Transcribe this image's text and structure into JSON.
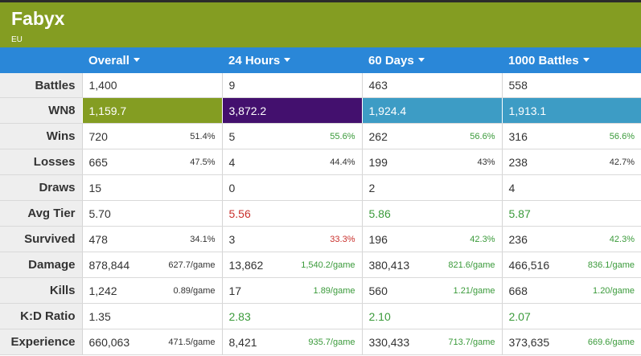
{
  "player": {
    "name": "Fabyx",
    "server": "EU"
  },
  "columns": [
    "Overall",
    "24 Hours",
    "60 Days",
    "1000 Battles"
  ],
  "colors": {
    "header_bg": "#849d22",
    "columns_bg": "#2a87d8",
    "wn8": [
      "#849d22",
      "#43106e",
      "#3d9cc5",
      "#3d9cc5"
    ],
    "good": "#3a9a3a",
    "bad": "#c9302c"
  },
  "rows": {
    "battles": {
      "label": "Battles",
      "cells": [
        {
          "v": "1,400"
        },
        {
          "v": "9"
        },
        {
          "v": "463"
        },
        {
          "v": "558"
        }
      ]
    },
    "wn8": {
      "label": "WN8",
      "cells": [
        {
          "v": "1,159.7"
        },
        {
          "v": "3,872.2"
        },
        {
          "v": "1,924.4"
        },
        {
          "v": "1,913.1"
        }
      ]
    },
    "wins": {
      "label": "Wins",
      "cells": [
        {
          "v": "720",
          "s": "51.4%"
        },
        {
          "v": "5",
          "s": "55.6%"
        },
        {
          "v": "262",
          "s": "56.6%"
        },
        {
          "v": "316",
          "s": "56.6%"
        }
      ]
    },
    "losses": {
      "label": "Losses",
      "cells": [
        {
          "v": "665",
          "s": "47.5%"
        },
        {
          "v": "4",
          "s": "44.4%"
        },
        {
          "v": "199",
          "s": "43%"
        },
        {
          "v": "238",
          "s": "42.7%"
        }
      ]
    },
    "draws": {
      "label": "Draws",
      "cells": [
        {
          "v": "15"
        },
        {
          "v": "0"
        },
        {
          "v": "2"
        },
        {
          "v": "4"
        }
      ]
    },
    "avg_tier": {
      "label": "Avg Tier",
      "cells": [
        {
          "v": "5.70"
        },
        {
          "v": "5.56"
        },
        {
          "v": "5.86"
        },
        {
          "v": "5.87"
        }
      ]
    },
    "survived": {
      "label": "Survived",
      "cells": [
        {
          "v": "478",
          "s": "34.1%"
        },
        {
          "v": "3",
          "s": "33.3%"
        },
        {
          "v": "196",
          "s": "42.3%"
        },
        {
          "v": "236",
          "s": "42.3%"
        }
      ]
    },
    "damage": {
      "label": "Damage",
      "cells": [
        {
          "v": "878,844",
          "s": "627.7/game"
        },
        {
          "v": "13,862",
          "s": "1,540.2/game"
        },
        {
          "v": "380,413",
          "s": "821.6/game"
        },
        {
          "v": "466,516",
          "s": "836.1/game"
        }
      ]
    },
    "kills": {
      "label": "Kills",
      "cells": [
        {
          "v": "1,242",
          "s": "0.89/game"
        },
        {
          "v": "17",
          "s": "1.89/game"
        },
        {
          "v": "560",
          "s": "1.21/game"
        },
        {
          "v": "668",
          "s": "1.20/game"
        }
      ]
    },
    "kd_ratio": {
      "label": "K:D Ratio",
      "cells": [
        {
          "v": "1.35"
        },
        {
          "v": "2.83"
        },
        {
          "v": "2.10"
        },
        {
          "v": "2.07"
        }
      ]
    },
    "experience": {
      "label": "Experience",
      "cells": [
        {
          "v": "660,063",
          "s": "471.5/game"
        },
        {
          "v": "8,421",
          "s": "935.7/game"
        },
        {
          "v": "330,433",
          "s": "713.7/game"
        },
        {
          "v": "373,635",
          "s": "669.6/game"
        }
      ]
    }
  }
}
